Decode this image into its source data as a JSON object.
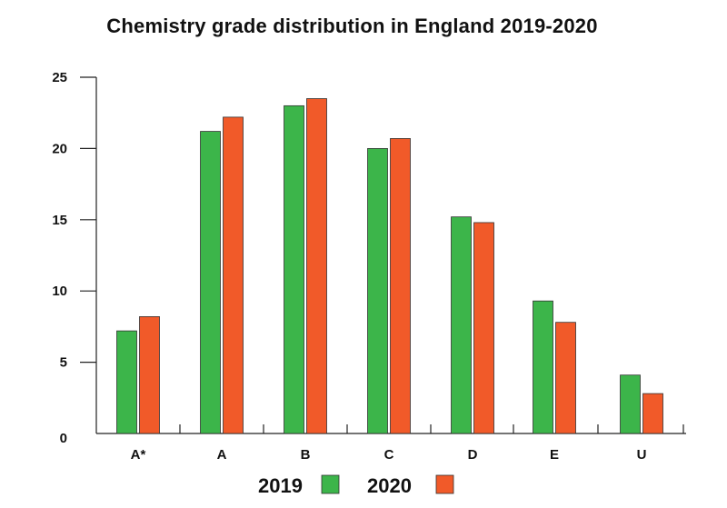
{
  "chart_data": {
    "type": "bar",
    "title": "Chemistry grade distribution in England 2019-2020",
    "xlabel": "",
    "ylabel": "",
    "categories": [
      "A*",
      "A",
      "B",
      "C",
      "D",
      "E",
      "U"
    ],
    "series": [
      {
        "name": "2019",
        "color": "#3cb54a",
        "values": [
          7.2,
          21.2,
          23.0,
          20.0,
          15.2,
          9.3,
          4.1
        ]
      },
      {
        "name": "2020",
        "color": "#f15a29",
        "values": [
          8.2,
          22.2,
          23.5,
          20.7,
          14.8,
          7.8,
          2.8
        ]
      }
    ],
    "ylim": [
      0,
      25
    ],
    "yticks": [
      0,
      5,
      10,
      15,
      20,
      25
    ],
    "grid": false,
    "legend_position": "bottom-center"
  }
}
